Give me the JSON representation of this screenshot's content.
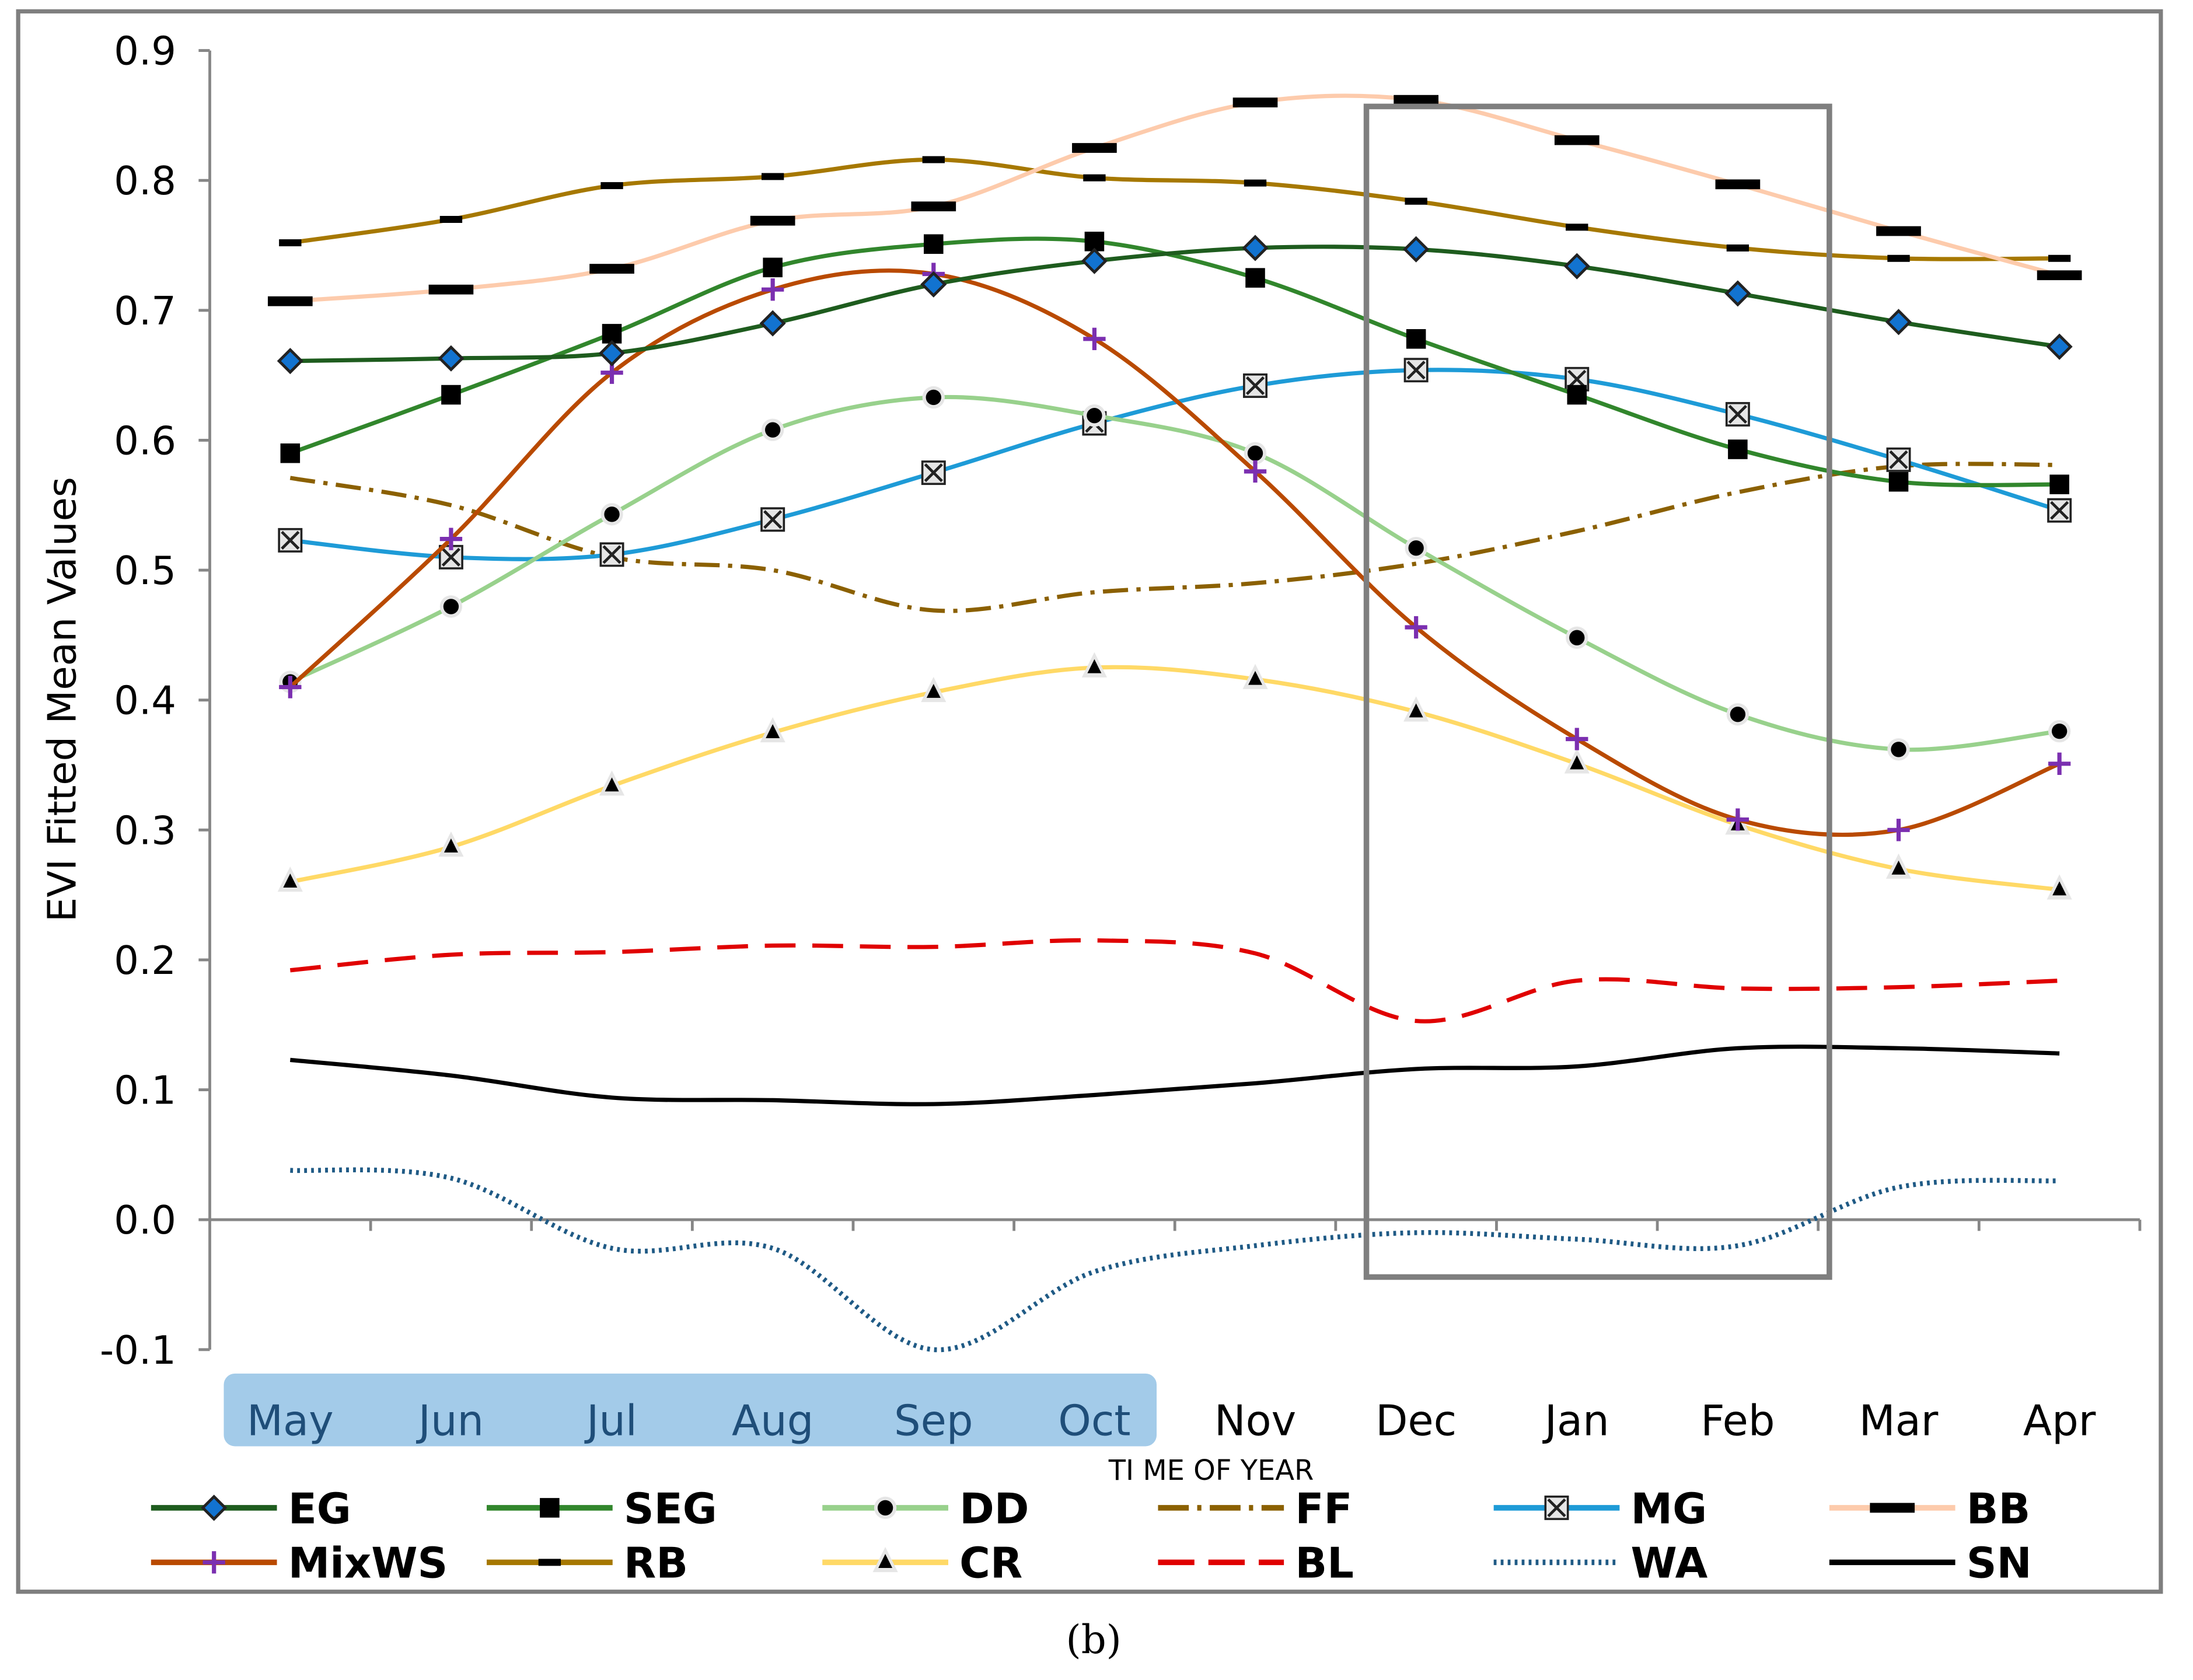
{
  "chart_data": {
    "type": "line",
    "caption": "(b)",
    "xlabel": "TI ME OF YEAR",
    "ylabel": "EVI Fitted Mean Values",
    "ylim": [
      -0.1,
      0.9
    ],
    "yticks": [
      "0.9",
      "0.8",
      "0.7",
      "0.6",
      "0.5",
      "0.4",
      "0.3",
      "0.2",
      "0.1",
      "0.0",
      "-0.1"
    ],
    "categories": [
      "May",
      "Jun",
      "Jul",
      "Aug",
      "Sep",
      "Oct",
      "Nov",
      "Dec",
      "Jan",
      "Feb",
      "Mar",
      "Apr"
    ],
    "highlighted_categories": [
      "May",
      "Jun",
      "Jul",
      "Aug",
      "Sep",
      "Oct"
    ],
    "boxed_categories": [
      "Dec",
      "Jan",
      "Feb"
    ],
    "grid": false,
    "legend_placement": "bottom",
    "series": [
      {
        "name": "EG",
        "color": "#1e5c1e",
        "marker": "diamond",
        "marker_color": "#1273d0",
        "dash": "",
        "values": [
          0.661,
          0.663,
          0.667,
          0.69,
          0.72,
          0.738,
          0.748,
          0.747,
          0.734,
          0.713,
          0.691,
          0.672
        ]
      },
      {
        "name": "SEG",
        "color": "#31862c",
        "marker": "square",
        "marker_color": "#000000",
        "dash": "",
        "values": [
          0.59,
          0.635,
          0.682,
          0.733,
          0.751,
          0.753,
          0.725,
          0.678,
          0.635,
          0.593,
          0.568,
          0.566
        ]
      },
      {
        "name": "DD",
        "color": "#98d18c",
        "marker": "circle",
        "marker_color": "#000000",
        "dash": "",
        "values": [
          0.414,
          0.472,
          0.543,
          0.608,
          0.633,
          0.619,
          0.59,
          0.517,
          0.448,
          0.389,
          0.362,
          0.376
        ]
      },
      {
        "name": "FF",
        "color": "#8b6000",
        "marker": "none",
        "marker_color": "#8b6000",
        "dash": "18 6 3 6",
        "values": [
          0.571,
          0.55,
          0.51,
          0.5,
          0.469,
          0.483,
          0.49,
          0.505,
          0.53,
          0.56,
          0.58,
          0.581
        ]
      },
      {
        "name": "MG",
        "color": "#1e9bd7",
        "marker": "xbox",
        "marker_color": "#222222",
        "dash": "",
        "values": [
          0.523,
          0.51,
          0.512,
          0.539,
          0.575,
          0.613,
          0.642,
          0.654,
          0.647,
          0.62,
          0.585,
          0.546
        ]
      },
      {
        "name": "BB",
        "color": "#fdcbac",
        "marker": "bar",
        "marker_color": "#000000",
        "dash": "",
        "values": [
          0.707,
          0.716,
          0.732,
          0.769,
          0.78,
          0.825,
          0.86,
          0.862,
          0.831,
          0.797,
          0.761,
          0.727
        ]
      },
      {
        "name": "MixWS",
        "color": "#b94a00",
        "marker": "plus",
        "marker_color": "#7b2fb0",
        "dash": "",
        "values": [
          0.41,
          0.524,
          0.652,
          0.716,
          0.728,
          0.678,
          0.576,
          0.456,
          0.37,
          0.308,
          0.3,
          0.351
        ]
      },
      {
        "name": "RB",
        "color": "#a67800",
        "marker": "dash",
        "marker_color": "#000000",
        "dash": "",
        "values": [
          0.752,
          0.77,
          0.796,
          0.803,
          0.816,
          0.802,
          0.798,
          0.784,
          0.764,
          0.748,
          0.74,
          0.74
        ]
      },
      {
        "name": "CR",
        "color": "#ffd966",
        "marker": "triangle",
        "marker_color": "#000000",
        "dash": "",
        "values": [
          0.26,
          0.287,
          0.334,
          0.375,
          0.406,
          0.425,
          0.416,
          0.391,
          0.351,
          0.304,
          0.27,
          0.254
        ]
      },
      {
        "name": "BL",
        "color": "#e00000",
        "marker": "none",
        "marker_color": "#e00000",
        "dash": "22 12",
        "values": [
          0.192,
          0.204,
          0.206,
          0.211,
          0.21,
          0.215,
          0.205,
          0.153,
          0.184,
          0.178,
          0.179,
          0.184
        ]
      },
      {
        "name": "WA",
        "color": "#1f5a85",
        "marker": "none",
        "marker_color": "#1f5a85",
        "dash": "2 3",
        "values": [
          0.038,
          0.032,
          -0.022,
          -0.022,
          -0.1,
          -0.04,
          -0.02,
          -0.01,
          -0.015,
          -0.02,
          0.025,
          0.03
        ]
      },
      {
        "name": "SN",
        "color": "#000000",
        "marker": "none",
        "marker_color": "#000000",
        "dash": "",
        "values": [
          0.123,
          0.111,
          0.094,
          0.092,
          0.089,
          0.096,
          0.105,
          0.116,
          0.118,
          0.132,
          0.132,
          0.128
        ]
      }
    ]
  }
}
